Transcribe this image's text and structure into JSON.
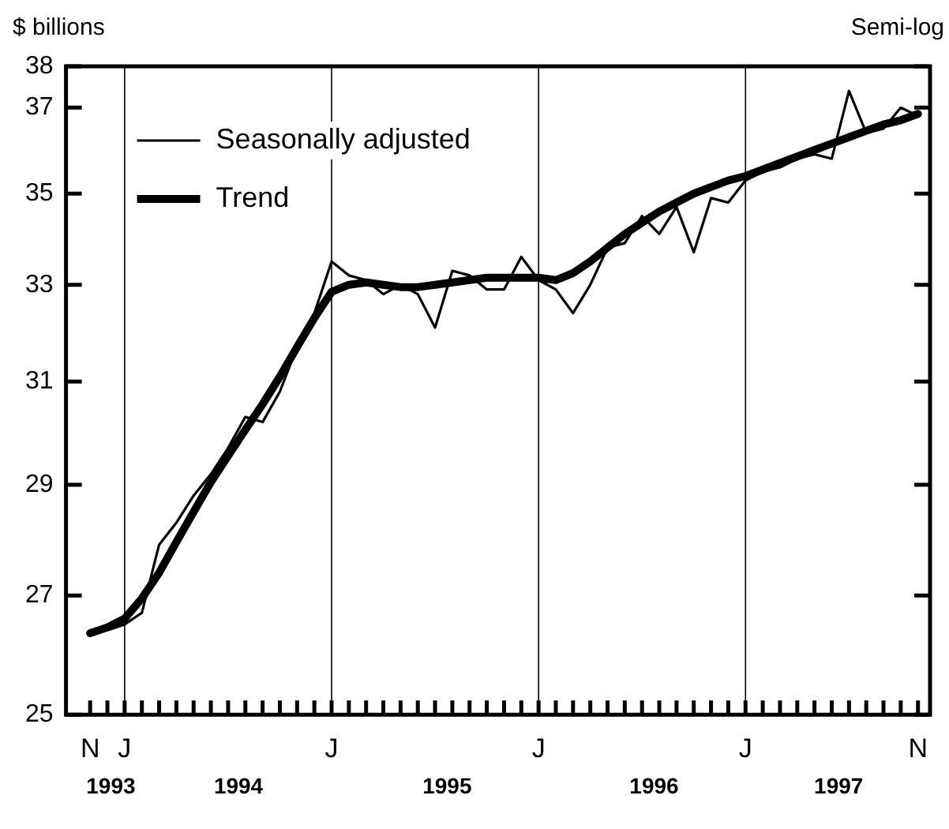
{
  "chart_data": {
    "type": "line",
    "ylabel": "$ billions",
    "annotations": [
      "Semi-log",
      "1993",
      "1994",
      "1995",
      "1996",
      "1997"
    ],
    "categories": [
      "N",
      null,
      "J",
      null,
      null,
      null,
      null,
      null,
      null,
      null,
      null,
      null,
      null,
      null,
      "J",
      null,
      null,
      null,
      null,
      null,
      null,
      null,
      null,
      null,
      null,
      null,
      "J",
      null,
      null,
      null,
      null,
      null,
      null,
      null,
      null,
      null,
      null,
      null,
      "J",
      null,
      null,
      null,
      null,
      null,
      null,
      null,
      null,
      null,
      "N"
    ],
    "series": [
      {
        "name": "Seasonally adjusted",
        "color": "#000000",
        "values": [
          26.4,
          26.4,
          26.5,
          26.7,
          27.9,
          28.3,
          28.8,
          29.2,
          29.7,
          30.3,
          30.2,
          30.8,
          31.7,
          32.4,
          33.5,
          33.2,
          33.1,
          32.8,
          33.0,
          32.8,
          32.1,
          33.3,
          33.2,
          32.9,
          32.9,
          33.6,
          33.1,
          32.9,
          32.4,
          33.0,
          33.8,
          33.9,
          34.5,
          34.1,
          34.7,
          33.7,
          34.9,
          34.8,
          35.3,
          35.5,
          35.6,
          35.8,
          35.9,
          35.8,
          37.4,
          36.4,
          36.5,
          37.0,
          36.8
        ]
      },
      {
        "name": "Trend",
        "color": "#000000",
        "values": [
          26.35,
          26.45,
          26.6,
          26.95,
          27.4,
          27.95,
          28.5,
          29.05,
          29.55,
          30.05,
          30.55,
          31.1,
          31.7,
          32.3,
          32.85,
          33.0,
          33.05,
          33.0,
          32.95,
          32.95,
          33.0,
          33.05,
          33.1,
          33.15,
          33.15,
          33.15,
          33.15,
          33.1,
          33.25,
          33.5,
          33.8,
          34.1,
          34.35,
          34.6,
          34.8,
          35.0,
          35.15,
          35.3,
          35.4,
          35.55,
          35.7,
          35.85,
          36.0,
          36.15,
          36.3,
          36.45,
          36.6,
          36.7,
          36.85
        ]
      }
    ],
    "ylim": [
      25,
      38
    ],
    "yticks": [
      25,
      27,
      29,
      31,
      33,
      35,
      37,
      38
    ],
    "log": true,
    "grid": "x",
    "legend": "top left",
    "marker": "none",
    "line_style": "solid"
  }
}
